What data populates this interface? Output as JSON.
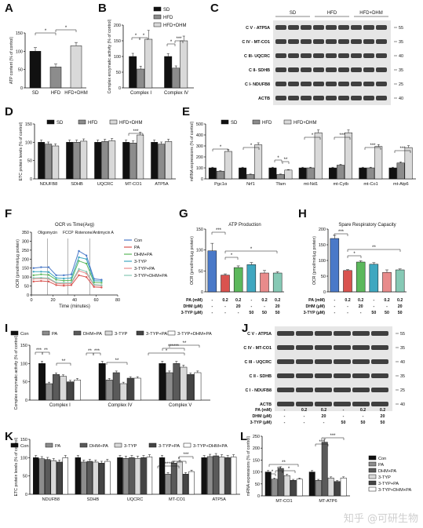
{
  "panels": {
    "A": "A",
    "B": "B",
    "C": "C",
    "D": "D",
    "E": "E",
    "F": "F",
    "G": "G",
    "H": "H",
    "I": "I",
    "J": "J",
    "K": "K",
    "L": "L"
  },
  "colors": {
    "black": "#111111",
    "grey": "#8c8c8c",
    "light": "#d9d9d9",
    "white": "#ffffff",
    "blue": "#4a79c8",
    "red": "#d9534f",
    "green": "#5cb85c",
    "teal": "#3fa7c0",
    "pink": "#e88b8b",
    "teal2": "#86c9b5"
  },
  "watermark": "知乎 @可研生物",
  "chart_data": [
    {
      "id": "A",
      "type": "bar",
      "ylabel": "ATP content (% of control)",
      "yticks": [
        "0",
        "50",
        "100",
        "150"
      ],
      "ylim": [
        0,
        150
      ],
      "categories": [
        "SD",
        "HFD",
        "HFD+DHM"
      ],
      "values": [
        100,
        57,
        115
      ],
      "errors": [
        10,
        8,
        9
      ],
      "sig": [
        "*",
        "*"
      ]
    },
    {
      "id": "B",
      "type": "bar",
      "ylabel": "Complex enzymatic activity (% of control)",
      "yticks": [
        "0",
        "50",
        "100",
        "150",
        "200"
      ],
      "ylim": [
        0,
        200
      ],
      "categories": [
        "Complex I",
        "Complex IV"
      ],
      "legend": [
        "SD",
        "HFD",
        "HFD+DHM"
      ],
      "series": [
        {
          "name": "SD",
          "values": [
            100,
            100
          ],
          "errors": [
            10,
            9
          ]
        },
        {
          "name": "HFD",
          "values": [
            60,
            63
          ],
          "errors": [
            9,
            7
          ]
        },
        {
          "name": "HFD+DHM",
          "values": [
            155,
            150
          ],
          "errors": [
            28,
            15
          ]
        }
      ],
      "sig": [
        "*",
        "*",
        "*",
        "***"
      ]
    },
    {
      "id": "C",
      "type": "blot",
      "groups": [
        "SD",
        "HFD",
        "HFD+DHM"
      ],
      "bands": [
        "C V - ATP5A",
        "C IV - MT-CO1",
        "C III- UQCRC",
        "C II- SDHB",
        "C I- NDUFB8",
        "ACTB"
      ],
      "markers": [
        "55",
        "35",
        "40",
        "35",
        "25",
        "40"
      ]
    },
    {
      "id": "D",
      "type": "bar",
      "ylabel": "ETC protein levels (% of control)",
      "yticks": [
        "0",
        "50",
        "100",
        "150"
      ],
      "ylim": [
        0,
        150
      ],
      "categories": [
        "NDUFB8",
        "SDHB",
        "UQCRC",
        "MT-CO1",
        "ATP5A"
      ],
      "legend": [
        "SD",
        "HFD",
        "HFD+DHM"
      ],
      "series": [
        {
          "name": "SD",
          "values": [
            100,
            100,
            100,
            100,
            100
          ]
        },
        {
          "name": "HFD",
          "values": [
            95,
            100,
            102,
            98,
            95
          ]
        },
        {
          "name": "HFD+DHM",
          "values": [
            90,
            103,
            104,
            120,
            102
          ]
        }
      ],
      "sig": [
        "***"
      ]
    },
    {
      "id": "E",
      "type": "bar",
      "ylabel": "mRNA expressions (% of control)",
      "yticks": [
        "0",
        "100",
        "200",
        "300",
        "400",
        "500"
      ],
      "ylim": [
        0,
        500
      ],
      "categories": [
        "Pgc1α",
        "Nrf1",
        "Tfam",
        "mt-Nd1",
        "mt-Cytb",
        "mt-Co1",
        "mt-Atp6"
      ],
      "legend": [
        "SD",
        "HFD",
        "HFD+DHM"
      ],
      "series": [
        {
          "name": "SD",
          "values": [
            100,
            100,
            100,
            100,
            100,
            100,
            100
          ]
        },
        {
          "name": "HFD",
          "values": [
            70,
            40,
            40,
            100,
            125,
            100,
            145
          ]
        },
        {
          "name": "HFD+DHM",
          "values": [
            250,
            310,
            80,
            420,
            420,
            295,
            285
          ]
        }
      ],
      "sig": [
        "*",
        "*",
        "*",
        "**",
        "*",
        "***",
        "***",
        "***",
        "*"
      ]
    },
    {
      "id": "F",
      "type": "line",
      "title": "OCR vs Time(Avg)",
      "xlabel": "Time (minutes)",
      "ylabel": "OCR (pmol/min/µg protein)",
      "xticks": [
        "0",
        "20",
        "40",
        "60",
        "80"
      ],
      "yticks": [
        "0",
        "50",
        "100",
        "150",
        "200",
        "250",
        "300",
        "350"
      ],
      "xlim": [
        0,
        80
      ],
      "ylim": [
        0,
        350
      ],
      "annotations": [
        "Oligomycin",
        "FCCP",
        "Rotenone/Antimycin A"
      ],
      "legend": [
        "Con",
        "PA",
        "DHM+PA",
        "3-TYP",
        "3-TYP+PA",
        "3-TYP+DHM+PA"
      ],
      "x": [
        2,
        9,
        16,
        23,
        30,
        37,
        44,
        51,
        58,
        65
      ],
      "series": [
        {
          "name": "Con",
          "values": [
            150,
            155,
            155,
            110,
            110,
            115,
            245,
            220,
            90,
            85
          ]
        },
        {
          "name": "PA",
          "values": [
            75,
            78,
            75,
            55,
            52,
            55,
            110,
            100,
            45,
            42
          ]
        },
        {
          "name": "DHM+PA",
          "values": [
            110,
            115,
            112,
            85,
            80,
            82,
            190,
            175,
            70,
            68
          ]
        },
        {
          "name": "3-TYP",
          "values": [
            130,
            130,
            128,
            95,
            92,
            95,
            210,
            200,
            80,
            78
          ]
        },
        {
          "name": "3-TYP+PA",
          "values": [
            90,
            92,
            90,
            65,
            62,
            64,
            135,
            120,
            55,
            52
          ]
        },
        {
          "name": "3-TYP+DHM+PA",
          "values": [
            95,
            96,
            94,
            70,
            68,
            70,
            145,
            130,
            58,
            55
          ]
        }
      ]
    },
    {
      "id": "G",
      "type": "bar",
      "title": "ATP Production",
      "ylabel": "OCR (pmol/min/µg protein)",
      "yticks": [
        "0",
        "50",
        "100",
        "150"
      ],
      "ylim": [
        0,
        150
      ],
      "categories": [
        "1",
        "2",
        "3",
        "4",
        "5",
        "6"
      ],
      "values": [
        98,
        40,
        58,
        65,
        45,
        45
      ],
      "errors": [
        18,
        3,
        4,
        5,
        6,
        3
      ],
      "conditions": [
        {
          "label": "PA (mM)",
          "values": [
            "-",
            "0.2",
            "0.2",
            "-",
            "0.2",
            "0.2"
          ]
        },
        {
          "label": "DHM (µM)",
          "values": [
            "-",
            "-",
            "20",
            "-",
            "-",
            "20"
          ]
        },
        {
          "label": "3-TYP (µM)",
          "values": [
            "-",
            "-",
            "-",
            "50",
            "50",
            "50"
          ]
        }
      ],
      "sig": [
        "***",
        "*",
        "*"
      ]
    },
    {
      "id": "H",
      "type": "bar",
      "title": "Spare Respiratory Capacity",
      "ylabel": "OCR (pmol/min/µg protein)",
      "yticks": [
        "0",
        "50",
        "100",
        "150",
        "200"
      ],
      "ylim": [
        0,
        200
      ],
      "categories": [
        "1",
        "2",
        "3",
        "4",
        "5",
        "6"
      ],
      "values": [
        170,
        68,
        95,
        88,
        62,
        70
      ],
      "errors": [
        10,
        3,
        4,
        5,
        8,
        3
      ],
      "conditions": [
        {
          "label": "PA (mM)",
          "values": [
            "-",
            "0.2",
            "0.2",
            "-",
            "0.2",
            "0.2"
          ]
        },
        {
          "label": "DHM (µM)",
          "values": [
            "-",
            "-",
            "20",
            "-",
            "-",
            "20"
          ]
        },
        {
          "label": "3-TYP (µM)",
          "values": [
            "-",
            "-",
            "-",
            "50",
            "50",
            "50"
          ]
        }
      ],
      "sig": [
        "***",
        "*",
        "**"
      ]
    },
    {
      "id": "I",
      "type": "bar",
      "ylabel": "Complex enzymatic activity (% of control)",
      "yticks": [
        "0",
        "50",
        "100",
        "150"
      ],
      "ylim": [
        0,
        150
      ],
      "categories": [
        "Complex I",
        "Complex IV",
        "Complex V"
      ],
      "legend": [
        "Con",
        "PA",
        "DHM+PA",
        "3-TYP",
        "3-TYP+PA",
        "3-TYP+DHM+PA"
      ],
      "series": [
        {
          "name": "Con",
          "values": [
            100,
            100,
            100
          ]
        },
        {
          "name": "PA",
          "values": [
            45,
            55,
            75
          ]
        },
        {
          "name": "DHM+PA",
          "values": [
            70,
            75,
            100
          ]
        },
        {
          "name": "3-TYP",
          "values": [
            65,
            45,
            90
          ]
        },
        {
          "name": "3-TYP+PA",
          "values": [
            50,
            60,
            70
          ]
        },
        {
          "name": "3-TYP+DHM+PA",
          "values": [
            55,
            60,
            75
          ]
        }
      ],
      "sig": [
        "***",
        "**",
        "**",
        "**",
        "***",
        "**",
        "*",
        "******",
        "**"
      ]
    },
    {
      "id": "J",
      "type": "blot",
      "bands": [
        "C V - ATP5A",
        "C IV - MT-CO1",
        "C III - UQCRC",
        "C II - SDHB",
        "C I - NDUFB8",
        "ACTB"
      ],
      "markers": [
        "55",
        "35",
        "40",
        "35",
        "25",
        "40"
      ],
      "conditions": [
        {
          "label": "PA (mM)",
          "values": [
            "-",
            "0.2",
            "0.2",
            "-",
            "0.2",
            "0.2"
          ]
        },
        {
          "label": "DHM (µM)",
          "values": [
            "-",
            "-",
            "20",
            "-",
            "-",
            "20"
          ]
        },
        {
          "label": "3-TYP (µM)",
          "values": [
            "-",
            "-",
            "-",
            "50",
            "50",
            "50"
          ]
        }
      ]
    },
    {
      "id": "K",
      "type": "bar",
      "ylabel": "ETC protein levels (% of control)",
      "yticks": [
        "0",
        "50",
        "100",
        "150"
      ],
      "ylim": [
        0,
        150
      ],
      "categories": [
        "NDUFB8",
        "SDHB",
        "UQCRC",
        "MT-CO1",
        "ATP5A"
      ],
      "legend": [
        "Con",
        "PA",
        "DHM+PA",
        "3-TYP",
        "3-TYP+PA",
        "3-TYP+DHM+PA"
      ],
      "series": [
        {
          "name": "Con",
          "values": [
            100,
            100,
            100,
            100,
            100
          ]
        },
        {
          "name": "PA",
          "values": [
            97,
            88,
            98,
            55,
            103
          ]
        },
        {
          "name": "DHM+PA",
          "values": [
            95,
            90,
            100,
            85,
            105
          ]
        },
        {
          "name": "3-TYP",
          "values": [
            92,
            88,
            98,
            88,
            102
          ]
        },
        {
          "name": "3-TYP+PA",
          "values": [
            88,
            85,
            100,
            55,
            100
          ]
        },
        {
          "name": "3-TYP+DHM+PA",
          "values": [
            100,
            90,
            102,
            62,
            102
          ]
        }
      ],
      "sig": [
        "******",
        "*",
        "***"
      ]
    },
    {
      "id": "L",
      "type": "bar",
      "ylabel": "mRNA expressions (% of control)",
      "yticks": [
        "0",
        "50",
        "100",
        "150",
        "200",
        "250"
      ],
      "ylim": [
        0,
        250
      ],
      "categories": [
        "MT-CO1",
        "MT-ATP6"
      ],
      "legend": [
        "Con",
        "PA",
        "DHM+PA",
        "3-TYP",
        "3-TYP+PA",
        "3-TYP+DHM+PA"
      ],
      "series": [
        {
          "name": "Con",
          "values": [
            100,
            100
          ]
        },
        {
          "name": "PA",
          "values": [
            70,
            65
          ]
        },
        {
          "name": "DHM+PA",
          "values": [
            115,
            225
          ]
        },
        {
          "name": "3-TYP",
          "values": [
            85,
            75
          ]
        },
        {
          "name": "3-TYP+PA",
          "values": [
            65,
            60
          ]
        },
        {
          "name": "3-TYP+DHM+PA",
          "values": [
            70,
            75
          ]
        }
      ],
      "sig": [
        "*",
        "**",
        "*",
        "**",
        "***",
        "***"
      ]
    }
  ]
}
